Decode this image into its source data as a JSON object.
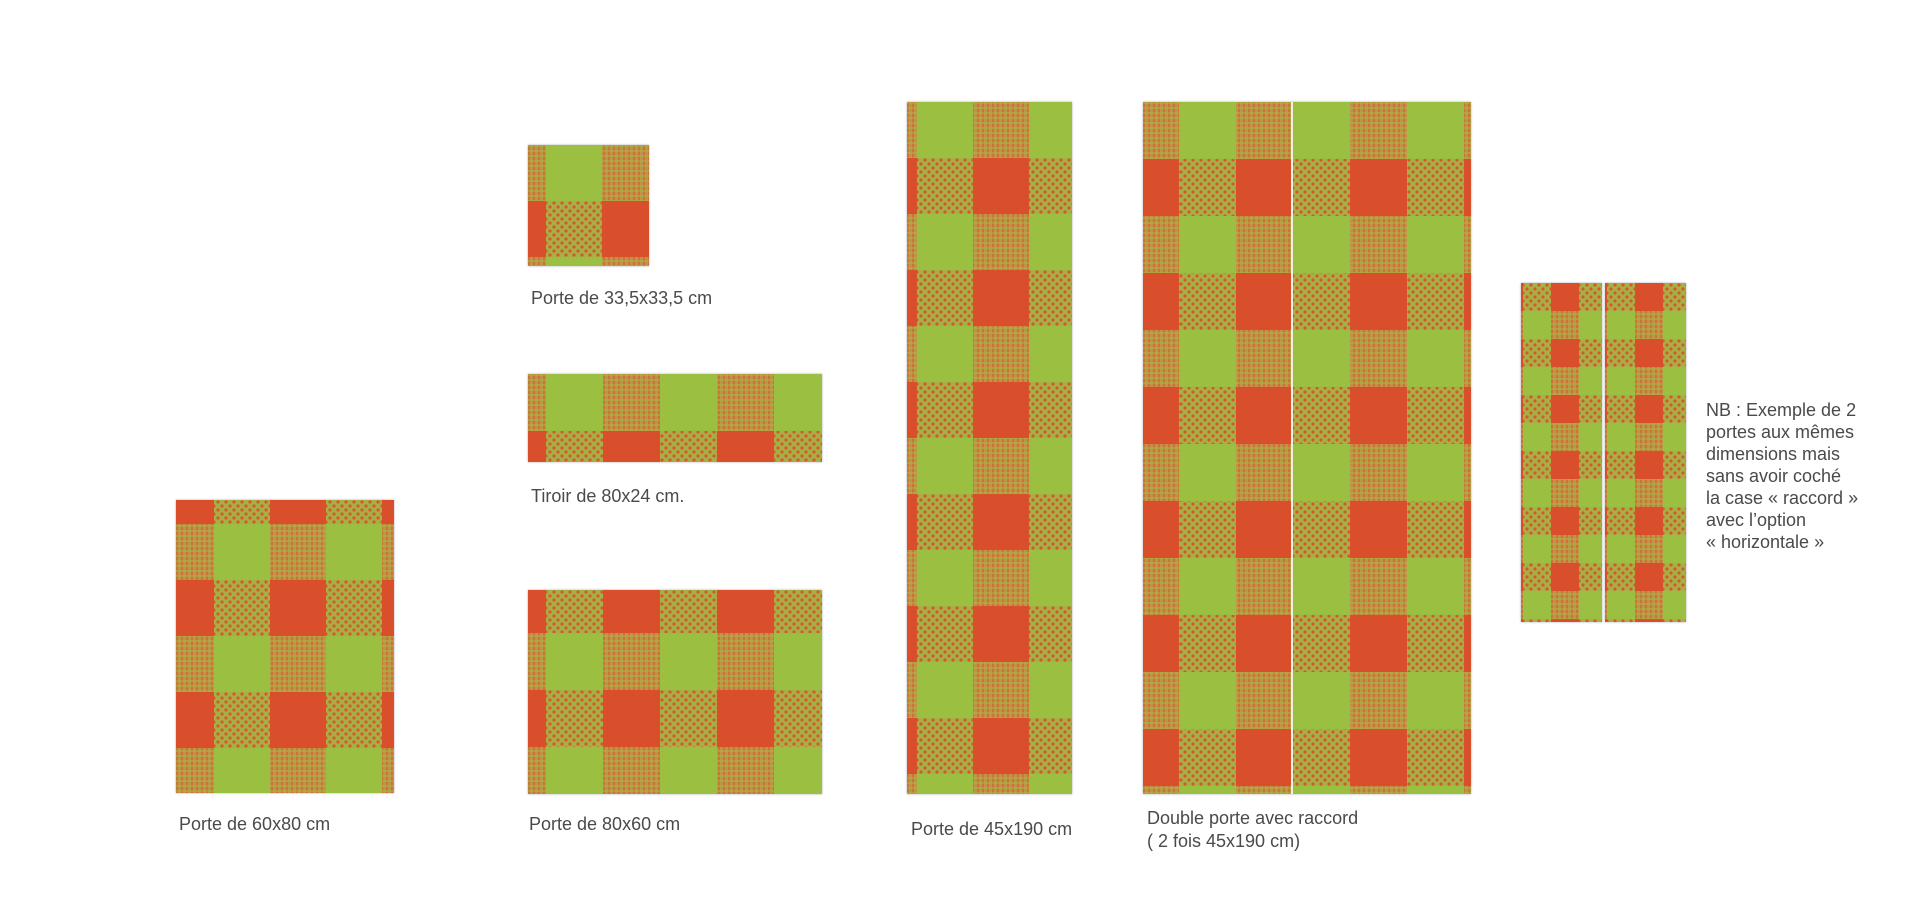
{
  "colors": {
    "green": "#9bbf40",
    "red": "#d94e2b",
    "dots_bg": "#a7b045",
    "dots_fg": "#d4592c",
    "grid_bg": "#c0934a",
    "grid_fg": "#d2672f",
    "divider": "#f1efe4"
  },
  "captions": {
    "p60x80": "Porte de 60x80 cm",
    "p33x33": "Porte de 33,5x33,5 cm",
    "t80x24": "Tiroir de 80x24 cm.",
    "p80x60": "Porte de 80x60 cm",
    "p45x190": "Porte de 45x190 cm",
    "double_line1": "Double porte avec raccord",
    "double_line2": "( 2 fois 45x190 cm)"
  },
  "note": {
    "lines": [
      "NB : Exemple de 2",
      "portes aux mêmes",
      "dimensions mais",
      "sans avoir coché",
      "la case « raccord »",
      "avec l’option",
      "« horizontale »"
    ]
  }
}
